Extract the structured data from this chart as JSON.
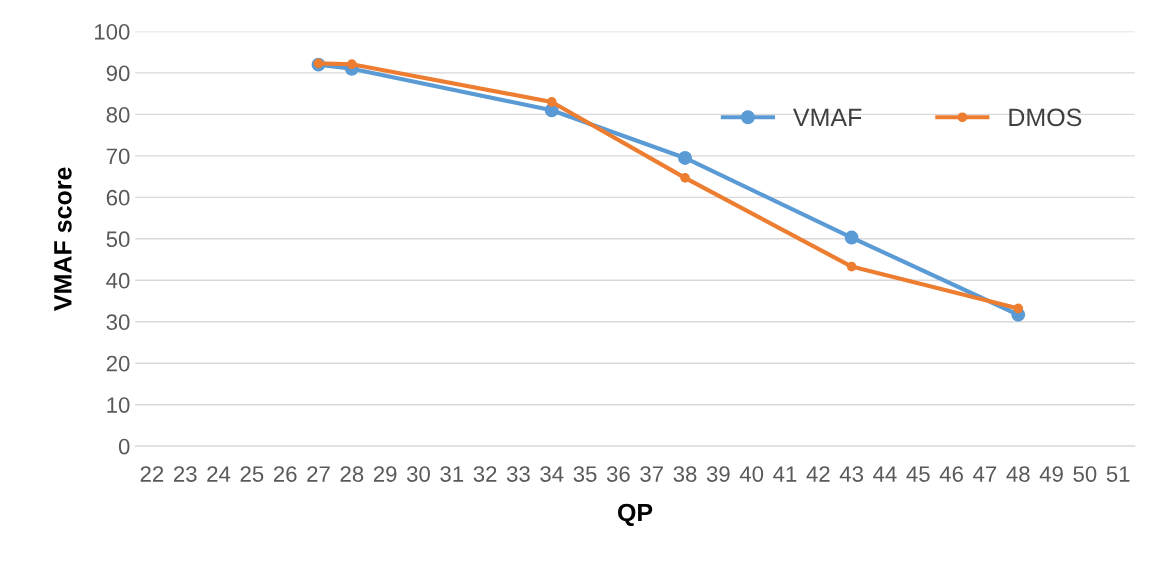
{
  "chart_data": {
    "type": "line",
    "xlabel": "QP",
    "ylabel": "VMAF score",
    "xlim": [
      21.5,
      51.5
    ],
    "xticks": [
      22,
      23,
      24,
      25,
      26,
      27,
      28,
      29,
      30,
      31,
      32,
      33,
      34,
      35,
      36,
      37,
      38,
      39,
      40,
      41,
      42,
      43,
      44,
      45,
      46,
      47,
      48,
      49,
      50,
      51
    ],
    "ylim": [
      0,
      100
    ],
    "yticks": [
      0,
      10,
      20,
      30,
      40,
      50,
      60,
      70,
      80,
      90,
      100
    ],
    "x": [
      27,
      28,
      34,
      38,
      43,
      48
    ],
    "series": [
      {
        "name": "VMAF",
        "color": "#5b9bd5",
        "values": [
          92,
          91,
          81,
          69.5,
          50.3,
          31.7
        ]
      },
      {
        "name": "DMOS",
        "color": "#ed7d31",
        "values": [
          92.3,
          92.1,
          83,
          64.7,
          43.3,
          33.2
        ]
      }
    ],
    "grid": "y",
    "legend": "top right",
    "marker": "circle",
    "line_style": "solid"
  }
}
